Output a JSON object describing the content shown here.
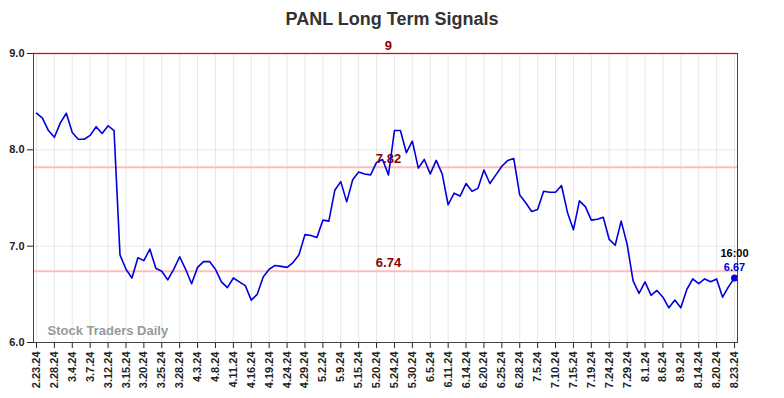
{
  "chart_data": {
    "type": "line",
    "title": "PANL Long Term Signals",
    "categories": [
      "2.23.24",
      null,
      null,
      "2.28.24",
      null,
      null,
      "3.4.24",
      null,
      null,
      "3.7.24",
      null,
      null,
      "3.12.24",
      null,
      null,
      "3.15.24",
      null,
      null,
      "3.20.24",
      null,
      null,
      "3.25.24",
      null,
      null,
      "3.28.24",
      null,
      null,
      "4.3.24",
      null,
      null,
      "4.8.24",
      null,
      null,
      "4.11.24",
      null,
      null,
      "4.16.24",
      null,
      null,
      "4.19.24",
      null,
      null,
      "4.24.24",
      null,
      null,
      "4.29.24",
      null,
      null,
      "5.2.24",
      null,
      null,
      "5.9.24",
      null,
      null,
      "5.15.24",
      null,
      null,
      "5.20.24",
      null,
      null,
      "5.24.24",
      null,
      null,
      "5.30.24",
      null,
      null,
      "6.5.24",
      null,
      null,
      "6.11.24",
      null,
      null,
      "6.14.24",
      null,
      null,
      "6.20.24",
      null,
      null,
      "6.25.24",
      null,
      null,
      "6.28.24",
      null,
      null,
      "7.5.24",
      null,
      null,
      "7.10.24",
      null,
      null,
      "7.15.24",
      null,
      null,
      "7.19.24",
      null,
      null,
      "7.24.24",
      null,
      null,
      "7.29.24",
      null,
      null,
      "8.1.24",
      null,
      null,
      "8.6.24",
      null,
      null,
      "8.9.24",
      null,
      null,
      "8.14.24",
      null,
      null,
      "8.20.24",
      null,
      null,
      "8.23.24"
    ],
    "values": [
      8.38,
      8.33,
      8.2,
      8.13,
      8.28,
      8.38,
      8.18,
      8.11,
      8.11,
      8.15,
      8.24,
      8.17,
      8.25,
      8.2,
      6.91,
      6.76,
      6.67,
      6.88,
      6.85,
      6.97,
      6.77,
      6.74,
      6.65,
      6.76,
      6.89,
      6.76,
      6.61,
      6.78,
      6.84,
      6.84,
      6.76,
      6.63,
      6.57,
      6.67,
      6.63,
      6.59,
      6.44,
      6.5,
      6.68,
      6.76,
      6.8,
      6.79,
      6.78,
      6.83,
      6.91,
      7.12,
      7.11,
      7.09,
      7.27,
      7.26,
      7.58,
      7.67,
      7.46,
      7.69,
      7.77,
      7.75,
      7.74,
      7.87,
      7.9,
      7.74,
      8.2,
      8.2,
      7.97,
      8.09,
      7.81,
      7.9,
      7.75,
      7.89,
      7.75,
      7.43,
      7.55,
      7.52,
      7.65,
      7.57,
      7.6,
      7.79,
      7.65,
      7.74,
      7.83,
      7.89,
      7.91,
      7.53,
      7.45,
      7.36,
      7.38,
      7.57,
      7.56,
      7.56,
      7.63,
      7.35,
      7.17,
      7.47,
      7.41,
      7.27,
      7.28,
      7.3,
      7.07,
      7.01,
      7.26,
      7.02,
      6.64,
      6.51,
      6.63,
      6.49,
      6.54,
      6.47,
      6.36,
      6.44,
      6.36,
      6.55,
      6.66,
      6.61,
      6.66,
      6.63,
      6.66,
      6.47,
      6.58,
      6.67
    ],
    "color": "#0000dd",
    "ylim": [
      6,
      9
    ],
    "yticks": [
      6,
      7,
      8,
      9
    ],
    "grid": true,
    "reference_lines": [
      9,
      7.82,
      6.74
    ],
    "end_label": "16:00",
    "watermark": "Stock Traders Daily"
  }
}
